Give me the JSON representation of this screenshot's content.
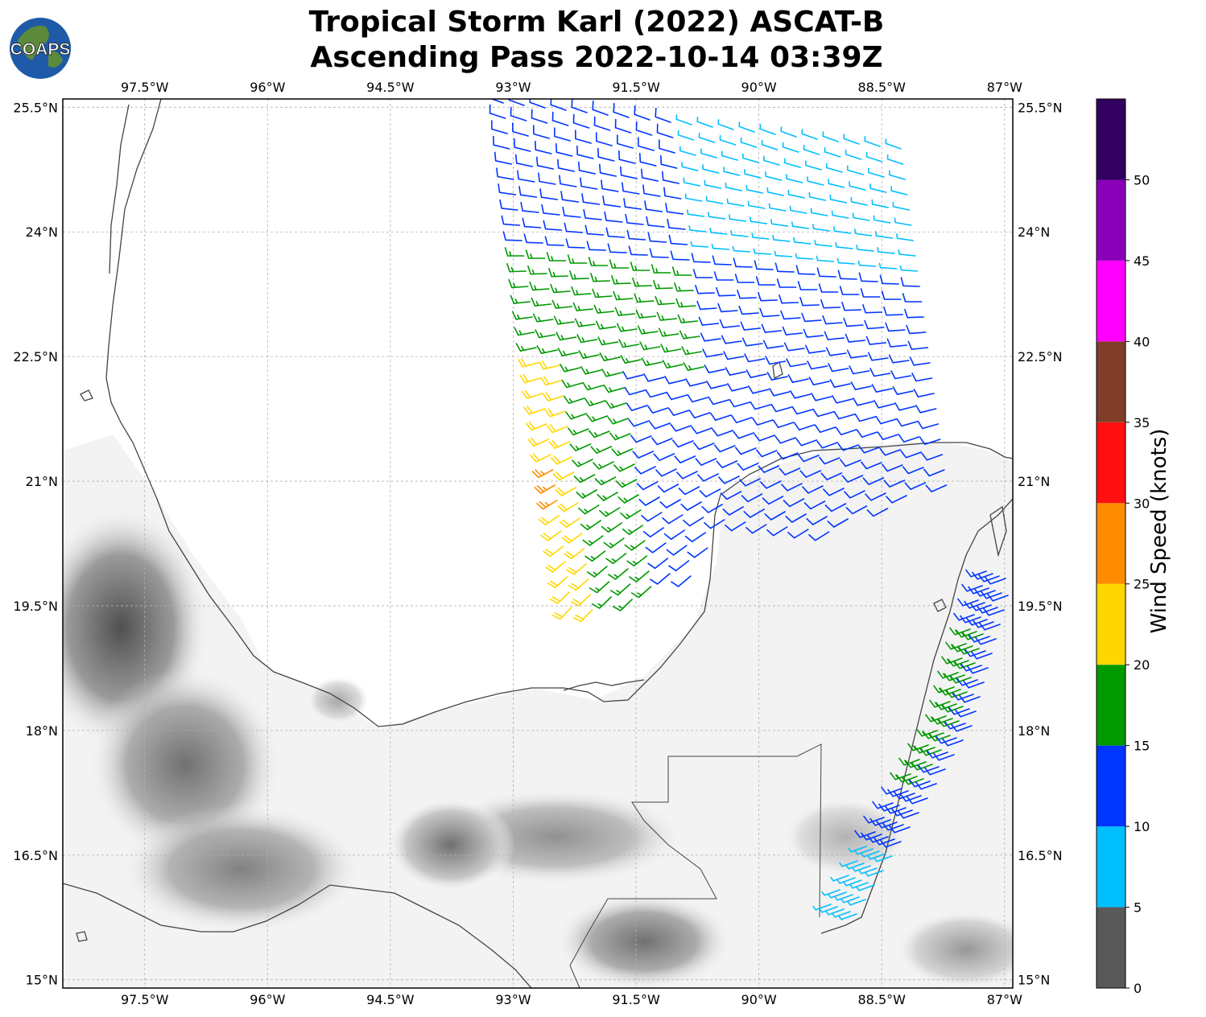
{
  "title": {
    "line1": "Tropical Storm Karl (2022) ASCAT-B",
    "line2": "Ascending Pass 2022-10-14 03:39Z"
  },
  "logo": {
    "text": "COAPS",
    "colors": {
      "ocean": "#1f5aa8",
      "land": "#5c8a3c"
    }
  },
  "map": {
    "lon_range": [
      -98.5,
      -86.9
    ],
    "lat_range": [
      14.9,
      25.6
    ],
    "lon_ticks": [
      {
        "value": -97.5,
        "label": "97.5°W"
      },
      {
        "value": -96.0,
        "label": "96°W"
      },
      {
        "value": -94.5,
        "label": "94.5°W"
      },
      {
        "value": -93.0,
        "label": "93°W"
      },
      {
        "value": -91.5,
        "label": "91.5°W"
      },
      {
        "value": -90.0,
        "label": "90°W"
      },
      {
        "value": -88.5,
        "label": "88.5°W"
      },
      {
        "value": -87.0,
        "label": "87°W"
      }
    ],
    "lat_ticks": [
      {
        "value": 25.5,
        "label": "25.5°N"
      },
      {
        "value": 24.0,
        "label": "24°N"
      },
      {
        "value": 22.5,
        "label": "22.5°N"
      },
      {
        "value": 21.0,
        "label": "21°N"
      },
      {
        "value": 19.5,
        "label": "19.5°N"
      },
      {
        "value": 18.0,
        "label": "18°N"
      },
      {
        "value": 16.5,
        "label": "16.5°N"
      },
      {
        "value": 15.0,
        "label": "15°N"
      }
    ],
    "gridlines": true,
    "coastline_color": "#444444",
    "terrain": "grayscale"
  },
  "colorbar": {
    "title": "Wind Speed (knots)",
    "bins": [
      {
        "min": 0,
        "max": 5,
        "color": "#595959"
      },
      {
        "min": 5,
        "max": 10,
        "color": "#00bfff"
      },
      {
        "min": 10,
        "max": 15,
        "color": "#0035ff"
      },
      {
        "min": 15,
        "max": 20,
        "color": "#009900"
      },
      {
        "min": 20,
        "max": 25,
        "color": "#ffd700"
      },
      {
        "min": 25,
        "max": 30,
        "color": "#ff8c00"
      },
      {
        "min": 30,
        "max": 35,
        "color": "#ff1010"
      },
      {
        "min": 35,
        "max": 40,
        "color": "#803d28"
      },
      {
        "min": 40,
        "max": 45,
        "color": "#ff00ff"
      },
      {
        "min": 45,
        "max": 50,
        "color": "#8a00b8"
      },
      {
        "min": 50,
        "max": 55,
        "color": "#32005e"
      }
    ],
    "tick_labels": [
      "0",
      "5",
      "10",
      "15",
      "20",
      "25",
      "30",
      "35",
      "40",
      "45",
      "50"
    ]
  }
}
